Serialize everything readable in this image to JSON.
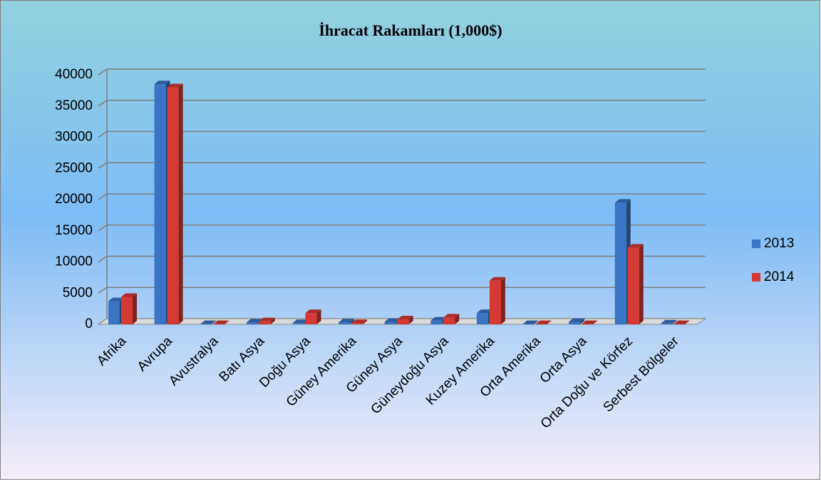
{
  "chart_data": {
    "type": "bar3d",
    "title": "İhracat Rakamları (1,000$)",
    "categories": [
      "Afrika",
      "Avrupa",
      "Avustralya",
      "Batı Asya",
      "Doğu Asya",
      "Güney Amerika",
      "Güney Asya",
      "Güneydoğu Asya",
      "Kuzey Amerika",
      "Orta Amerika",
      "Orta Asya",
      "Orta Doğu ve Körfez",
      "Serbest Bölgeler"
    ],
    "series": [
      {
        "name": "2013",
        "color": "#3a74c4",
        "values": [
          3700,
          38500,
          50,
          300,
          200,
          300,
          400,
          600,
          1800,
          50,
          400,
          19500,
          150
        ]
      },
      {
        "name": "2014",
        "color": "#d63a35",
        "values": [
          4400,
          38000,
          50,
          500,
          1800,
          200,
          800,
          1100,
          7000,
          50,
          50,
          12300,
          50
        ]
      }
    ],
    "ylim": [
      0,
      40000
    ],
    "yticks": [
      0,
      5000,
      10000,
      15000,
      20000,
      25000,
      30000,
      35000,
      40000
    ],
    "grid": true,
    "legend": "right"
  }
}
